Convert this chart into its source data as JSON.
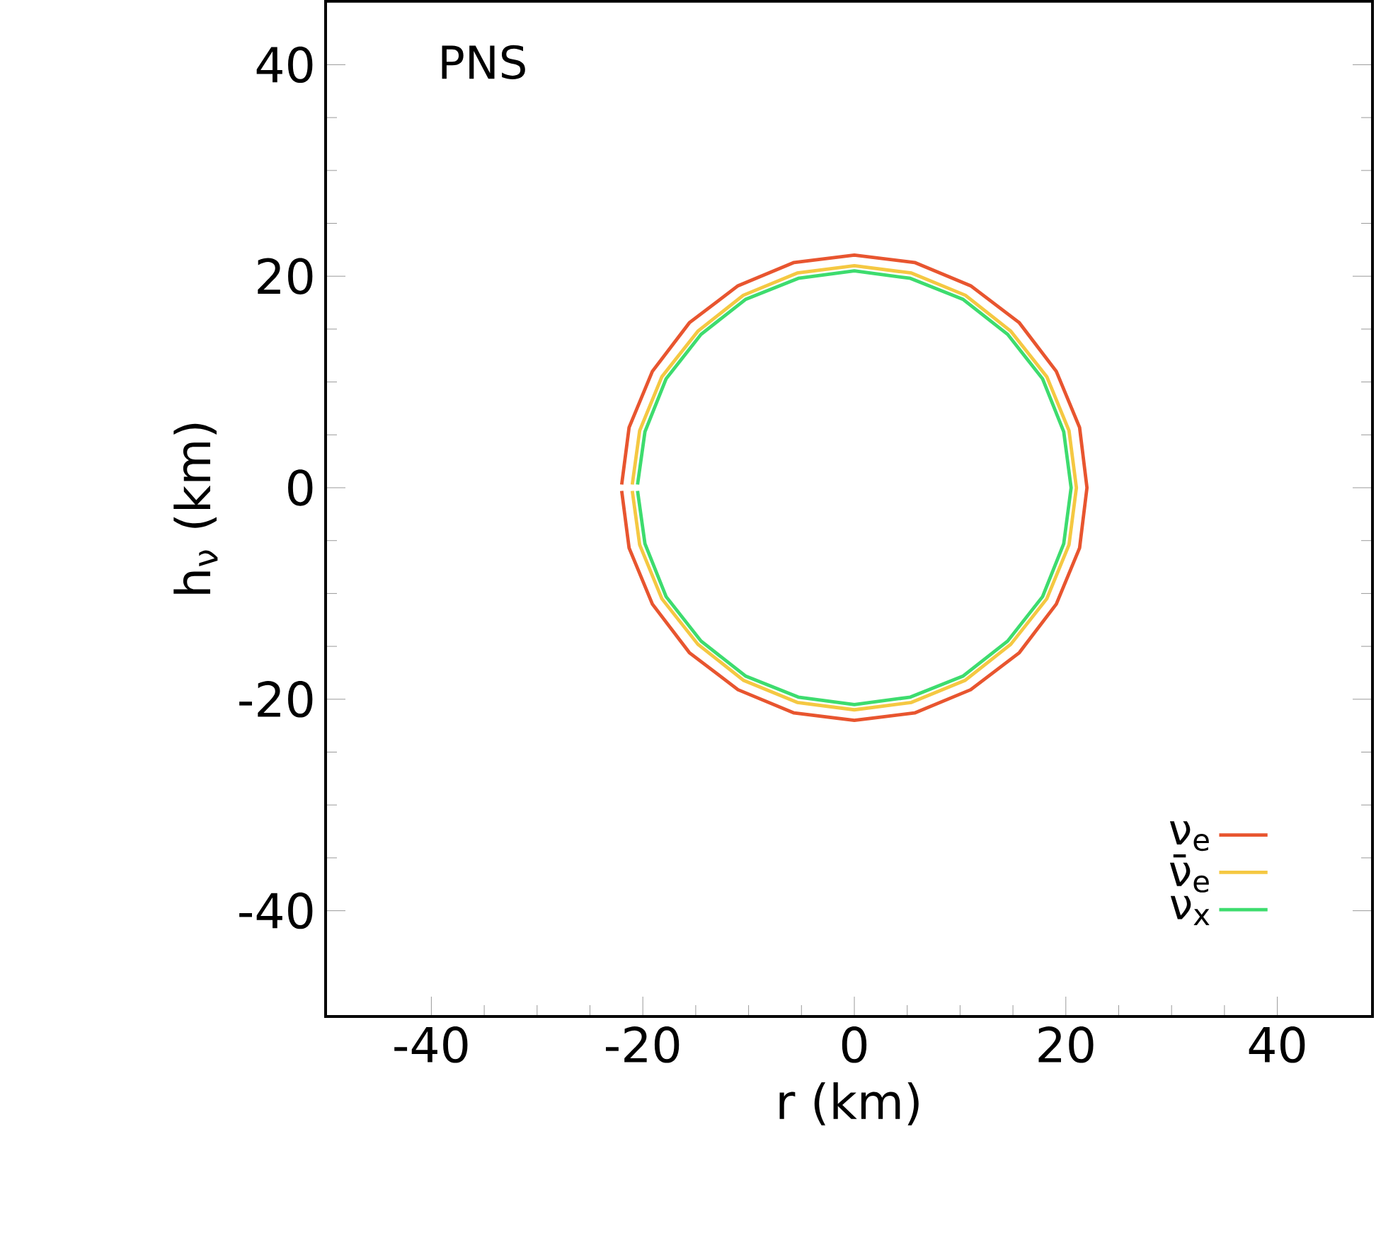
{
  "chart_data": {
    "type": "line",
    "xlabel": "r (km)",
    "ylabel": "h$_{ν}$ (km)",
    "annotations": [
      "PNS"
    ],
    "xlim": [
      -50,
      49
    ],
    "ylim": [
      -50,
      46
    ],
    "xticks": [
      -40,
      -20,
      0,
      20,
      40
    ],
    "yticks": [
      -40,
      -20,
      0,
      20,
      40
    ],
    "grid": false,
    "legend": "bottom right",
    "marker": "none",
    "line_style": "solid",
    "series": [
      {
        "name": "ν$_{e}$",
        "color": "#e8552f",
        "x": [
          -22,
          -21.3,
          -19.1,
          -15.6,
          -11,
          -5.7,
          0,
          5.7,
          11,
          15.6,
          19.1,
          21.3,
          22,
          21.3,
          19.1,
          15.6,
          11,
          5.7,
          0,
          -5.7,
          -11,
          -15.6,
          -19.1,
          -21.3,
          -22
        ],
        "values": [
          -0.3,
          -5.7,
          -11,
          -15.6,
          -19.1,
          -21.3,
          -22,
          -21.3,
          -19.1,
          -15.6,
          -11,
          -5.7,
          0,
          5.7,
          11,
          15.6,
          19.1,
          21.3,
          22,
          21.3,
          19.1,
          15.6,
          11,
          5.7,
          0.3
        ]
      },
      {
        "name": "ν̄$_{e}$",
        "color": "#f5c842",
        "x": [
          -21,
          -20.3,
          -18.2,
          -14.8,
          -10.5,
          -5.4,
          0,
          5.4,
          10.5,
          14.8,
          18.2,
          20.3,
          21,
          20.3,
          18.2,
          14.8,
          10.5,
          5.4,
          0,
          -5.4,
          -10.5,
          -14.8,
          -18.2,
          -20.3,
          -21
        ],
        "values": [
          -0.3,
          -5.4,
          -10.5,
          -14.8,
          -18.2,
          -20.3,
          -21,
          -20.3,
          -18.2,
          -14.8,
          -10.5,
          -5.4,
          0,
          5.4,
          10.5,
          14.8,
          18.2,
          20.3,
          21,
          20.3,
          18.2,
          14.8,
          10.5,
          5.4,
          0.3
        ]
      },
      {
        "name": "ν$_{x}$",
        "color": "#3ddc6e",
        "x": [
          -20.5,
          -19.8,
          -17.8,
          -14.5,
          -10.3,
          -5.3,
          0,
          5.3,
          10.3,
          14.5,
          17.8,
          19.8,
          20.5,
          19.8,
          17.8,
          14.5,
          10.3,
          5.3,
          0,
          -5.3,
          -10.3,
          -14.5,
          -17.8,
          -19.8,
          -20.5
        ],
        "values": [
          -0.3,
          -5.3,
          -10.3,
          -14.5,
          -17.8,
          -19.8,
          -20.5,
          -19.8,
          -17.8,
          -14.5,
          -10.3,
          -5.3,
          0,
          5.3,
          10.3,
          14.5,
          17.8,
          19.8,
          20.5,
          19.8,
          17.8,
          14.5,
          10.3,
          5.3,
          0.3
        ]
      }
    ]
  }
}
